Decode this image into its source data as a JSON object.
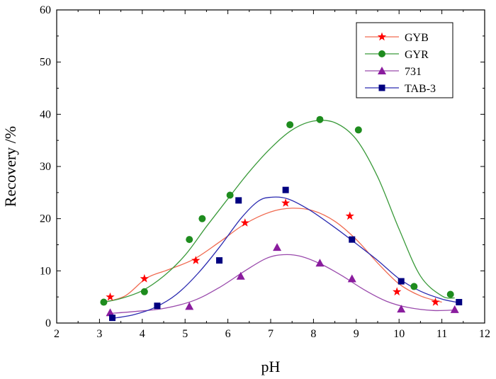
{
  "chart_data": {
    "type": "scatter",
    "xlabel": "pH",
    "ylabel": "Recovery /%",
    "xlim": [
      2,
      12
    ],
    "ylim": [
      0,
      60
    ],
    "x_ticks": [
      "2",
      "3",
      "4",
      "5",
      "6",
      "7",
      "8",
      "9",
      "10",
      "11",
      "12"
    ],
    "y_ticks": [
      "0",
      "10",
      "20",
      "30",
      "40",
      "50",
      "60"
    ],
    "grid": false,
    "legend_position": "top-right",
    "series": [
      {
        "name": "GYB",
        "marker": "star",
        "color": "#ff0000",
        "line_color": "#f06a50",
        "points": [
          [
            3.25,
            5
          ],
          [
            4.05,
            8.5
          ],
          [
            5.25,
            12
          ],
          [
            6.4,
            19.2
          ],
          [
            7.35,
            23
          ],
          [
            8.85,
            20.5
          ],
          [
            9.95,
            6
          ],
          [
            10.85,
            4
          ]
        ],
        "fit_curve": [
          [
            3.1,
            4.0
          ],
          [
            3.6,
            5.2
          ],
          [
            4.1,
            8.6
          ],
          [
            4.6,
            10.2
          ],
          [
            5.2,
            12.2
          ],
          [
            5.8,
            15.5
          ],
          [
            6.4,
            19.0
          ],
          [
            7.0,
            21.3
          ],
          [
            7.5,
            22.0
          ],
          [
            8.0,
            21.5
          ],
          [
            8.5,
            19.5
          ],
          [
            9.0,
            16.0
          ],
          [
            9.5,
            11.5
          ],
          [
            10.0,
            7.5
          ],
          [
            10.5,
            5.2
          ],
          [
            11.0,
            4.0
          ]
        ]
      },
      {
        "name": "GYR",
        "marker": "circle",
        "color": "#1e8c1e",
        "line_color": "#3a9a3a",
        "points": [
          [
            3.1,
            4
          ],
          [
            4.05,
            6
          ],
          [
            5.1,
            16
          ],
          [
            5.4,
            20
          ],
          [
            6.05,
            24.5
          ],
          [
            7.45,
            38
          ],
          [
            8.15,
            39
          ],
          [
            9.05,
            37
          ],
          [
            10.35,
            7
          ],
          [
            11.2,
            5.5
          ]
        ],
        "fit_curve": [
          [
            3.1,
            4.0
          ],
          [
            3.5,
            4.7
          ],
          [
            4.0,
            6.2
          ],
          [
            4.5,
            9.0
          ],
          [
            5.0,
            13.0
          ],
          [
            5.5,
            18.5
          ],
          [
            6.0,
            23.8
          ],
          [
            6.5,
            29.0
          ],
          [
            7.0,
            33.5
          ],
          [
            7.5,
            37.0
          ],
          [
            8.0,
            38.7
          ],
          [
            8.5,
            38.4
          ],
          [
            9.0,
            35.2
          ],
          [
            9.5,
            28.0
          ],
          [
            10.0,
            18.0
          ],
          [
            10.5,
            9.0
          ],
          [
            11.0,
            5.2
          ],
          [
            11.3,
            4.8
          ]
        ]
      },
      {
        "name": "731",
        "marker": "triangle",
        "color": "#8a1c9e",
        "line_color": "#9a4aac",
        "points": [
          [
            3.25,
            2
          ],
          [
            5.1,
            3.2
          ],
          [
            6.3,
            9
          ],
          [
            7.15,
            14.5
          ],
          [
            8.15,
            11.5
          ],
          [
            8.9,
            8.5
          ],
          [
            10.05,
            2.7
          ],
          [
            11.3,
            2.6
          ]
        ],
        "fit_curve": [
          [
            3.2,
            1.8
          ],
          [
            3.8,
            2.2
          ],
          [
            4.5,
            2.8
          ],
          [
            5.2,
            4.3
          ],
          [
            5.8,
            6.8
          ],
          [
            6.4,
            10.0
          ],
          [
            6.9,
            12.4
          ],
          [
            7.3,
            13.1
          ],
          [
            7.7,
            12.8
          ],
          [
            8.2,
            11.2
          ],
          [
            8.7,
            8.9
          ],
          [
            9.2,
            6.3
          ],
          [
            9.7,
            4.2
          ],
          [
            10.2,
            3.0
          ],
          [
            10.8,
            2.4
          ],
          [
            11.3,
            2.5
          ]
        ]
      },
      {
        "name": "TAB-3",
        "marker": "square",
        "color": "#000080",
        "line_color": "#2a2ab0",
        "points": [
          [
            3.3,
            1
          ],
          [
            4.35,
            3.3
          ],
          [
            5.8,
            12
          ],
          [
            6.25,
            23.5
          ],
          [
            7.35,
            25.5
          ],
          [
            8.9,
            16
          ],
          [
            10.05,
            8
          ],
          [
            11.4,
            4
          ]
        ],
        "fit_curve": [
          [
            3.3,
            0.9
          ],
          [
            3.8,
            1.6
          ],
          [
            4.3,
            3.0
          ],
          [
            4.8,
            5.5
          ],
          [
            5.3,
            9.5
          ],
          [
            5.8,
            14.5
          ],
          [
            6.3,
            20.0
          ],
          [
            6.7,
            23.3
          ],
          [
            7.0,
            24.1
          ],
          [
            7.4,
            23.8
          ],
          [
            7.9,
            21.7
          ],
          [
            8.5,
            18.3
          ],
          [
            9.0,
            15.2
          ],
          [
            9.5,
            12.0
          ],
          [
            10.0,
            8.5
          ],
          [
            10.5,
            6.1
          ],
          [
            11.0,
            4.6
          ],
          [
            11.4,
            3.9
          ]
        ]
      }
    ]
  }
}
